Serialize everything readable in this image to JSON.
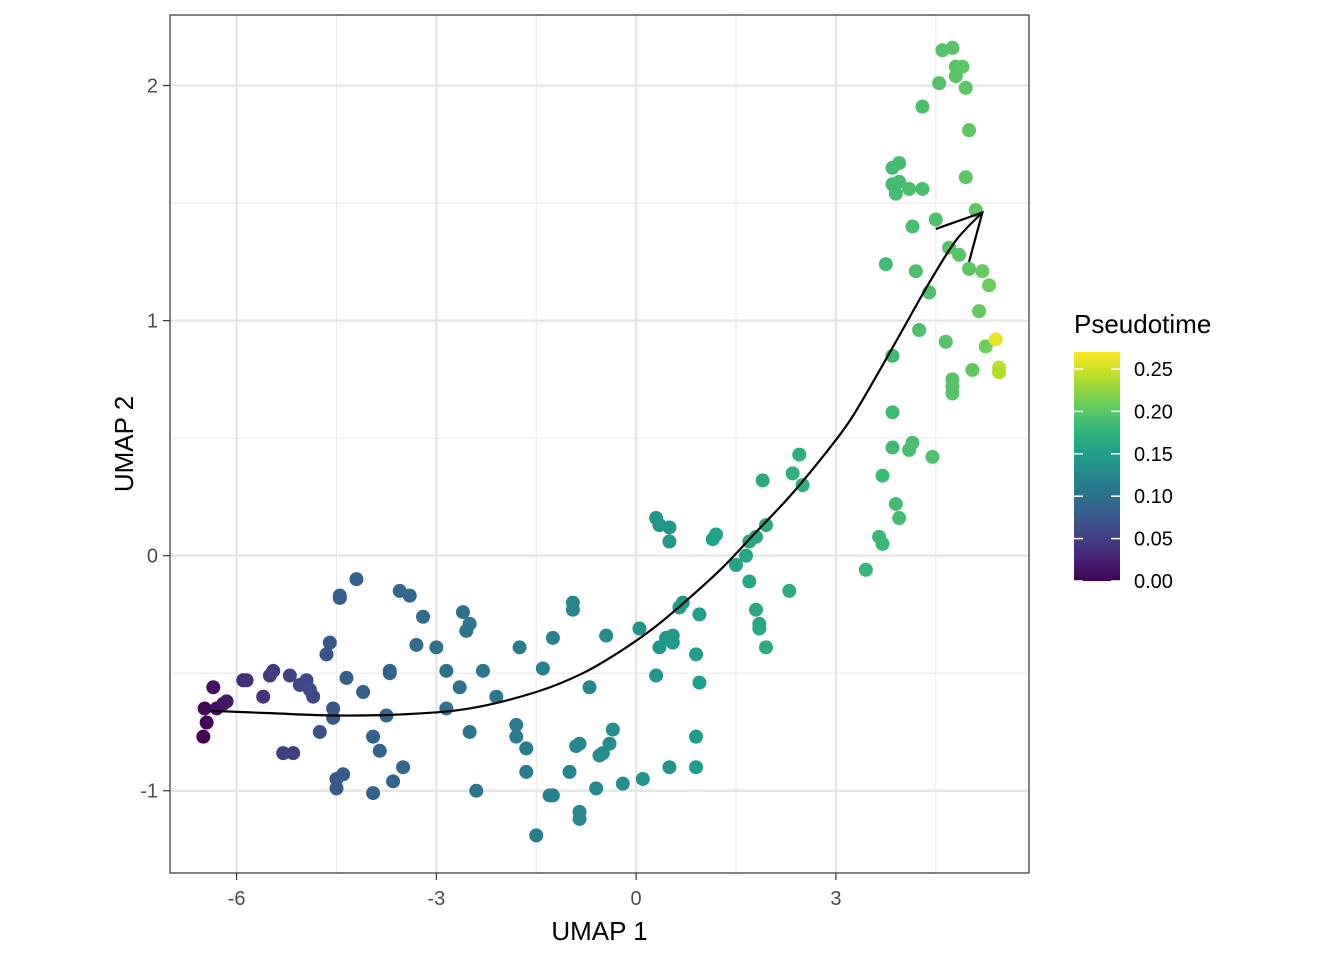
{
  "chart_data": {
    "type": "scatter",
    "title": "",
    "xlabel": "UMAP 1",
    "ylabel": "UMAP 2",
    "xlim": [
      -7.0,
      5.9
    ],
    "ylim": [
      -1.35,
      2.3
    ],
    "x_ticks": [
      -6,
      -3,
      0,
      3
    ],
    "x_tick_labels": [
      "-6",
      "-3",
      "0",
      "3"
    ],
    "y_ticks": [
      -1,
      0,
      1,
      2
    ],
    "y_tick_labels": [
      "-1",
      "0",
      "1",
      "2"
    ],
    "grid": true,
    "legend": {
      "title": "Pseudotime",
      "placement": "right",
      "type": "continuous",
      "range": [
        0.0,
        0.27
      ],
      "ticks": [
        0.0,
        0.05,
        0.1,
        0.15,
        0.2,
        0.25
      ],
      "tick_labels": [
        "0.00",
        "0.05",
        "0.10",
        "0.15",
        "0.20",
        "0.25"
      ]
    },
    "colormap": "viridis",
    "colormap_stops": [
      "#440154",
      "#482878",
      "#3E4A89",
      "#31688E",
      "#26828E",
      "#1F9E89",
      "#35B779",
      "#6DCD59",
      "#B4DE2C",
      "#FDE725"
    ],
    "trajectory": [
      [
        -6.4,
        -0.66
      ],
      [
        -5.5,
        -0.67
      ],
      [
        -4.5,
        -0.68
      ],
      [
        -3.5,
        -0.675
      ],
      [
        -2.5,
        -0.65
      ],
      [
        -1.5,
        -0.58
      ],
      [
        -0.8,
        -0.5
      ],
      [
        -0.2,
        -0.4
      ],
      [
        0.3,
        -0.3
      ],
      [
        0.8,
        -0.18
      ],
      [
        1.3,
        -0.05
      ],
      [
        1.8,
        0.1
      ],
      [
        2.3,
        0.25
      ],
      [
        2.8,
        0.42
      ],
      [
        3.2,
        0.57
      ],
      [
        3.6,
        0.76
      ],
      [
        4.0,
        0.96
      ],
      [
        4.4,
        1.16
      ],
      [
        4.8,
        1.34
      ],
      [
        5.2,
        1.46
      ]
    ],
    "arrow_head": {
      "tip": [
        5.2,
        1.46
      ],
      "left": [
        4.5,
        1.39
      ],
      "right": [
        5.0,
        1.25
      ]
    },
    "points": [
      [
        -6.5,
        -0.77,
        0.0
      ],
      [
        -6.45,
        -0.71,
        0.003
      ],
      [
        -6.48,
        -0.65,
        0.005
      ],
      [
        -6.35,
        -0.56,
        0.01
      ],
      [
        -6.3,
        -0.65,
        0.012
      ],
      [
        -6.2,
        -0.63,
        0.015
      ],
      [
        -6.15,
        -0.62,
        0.018
      ],
      [
        -5.9,
        -0.53,
        0.035
      ],
      [
        -5.85,
        -0.53,
        0.037
      ],
      [
        -5.6,
        -0.6,
        0.04
      ],
      [
        -5.5,
        -0.51,
        0.045
      ],
      [
        -5.45,
        -0.49,
        0.048
      ],
      [
        -5.3,
        -0.84,
        0.05
      ],
      [
        -5.15,
        -0.84,
        0.052
      ],
      [
        -5.2,
        -0.51,
        0.055
      ],
      [
        -5.05,
        -0.55,
        0.057
      ],
      [
        -4.95,
        -0.53,
        0.058
      ],
      [
        -4.9,
        -0.57,
        0.06
      ],
      [
        -4.85,
        -0.6,
        0.06
      ],
      [
        -4.65,
        -0.42,
        0.07
      ],
      [
        -4.6,
        -0.37,
        0.072
      ],
      [
        -4.75,
        -0.75,
        0.068
      ],
      [
        -4.55,
        -0.65,
        0.072
      ],
      [
        -4.55,
        -0.69,
        0.073
      ],
      [
        -4.5,
        -0.99,
        0.075
      ],
      [
        -4.5,
        -0.95,
        0.075
      ],
      [
        -4.4,
        -0.93,
        0.077
      ],
      [
        -4.45,
        -0.18,
        0.08
      ],
      [
        -4.45,
        -0.17,
        0.08
      ],
      [
        -4.35,
        -0.52,
        0.08
      ],
      [
        -4.2,
        -0.1,
        0.082
      ],
      [
        -4.1,
        -0.58,
        0.083
      ],
      [
        -3.95,
        -0.77,
        0.085
      ],
      [
        -3.95,
        -1.01,
        0.085
      ],
      [
        -3.85,
        -0.83,
        0.086
      ],
      [
        -3.75,
        -0.68,
        0.087
      ],
      [
        -3.7,
        -0.49,
        0.088
      ],
      [
        -3.7,
        -0.5,
        0.088
      ],
      [
        -3.65,
        -0.96,
        0.088
      ],
      [
        -3.55,
        -0.15,
        0.09
      ],
      [
        -3.5,
        -0.9,
        0.09
      ],
      [
        -3.4,
        -0.17,
        0.092
      ],
      [
        -3.3,
        -0.38,
        0.095
      ],
      [
        -3.2,
        -0.26,
        0.095
      ],
      [
        -3.0,
        -0.39,
        0.098
      ],
      [
        -2.85,
        -0.65,
        0.1
      ],
      [
        -2.85,
        -0.49,
        0.1
      ],
      [
        -2.65,
        -0.56,
        0.102
      ],
      [
        -2.6,
        -0.24,
        0.102
      ],
      [
        -2.55,
        -0.32,
        0.104
      ],
      [
        -2.5,
        -0.29,
        0.105
      ],
      [
        -2.5,
        -0.75,
        0.105
      ],
      [
        -2.4,
        -1.0,
        0.106
      ],
      [
        -2.3,
        -0.49,
        0.107
      ],
      [
        -2.1,
        -0.6,
        0.11
      ],
      [
        -1.75,
        -0.39,
        0.115
      ],
      [
        -1.8,
        -0.72,
        0.113
      ],
      [
        -1.8,
        -0.77,
        0.113
      ],
      [
        -1.65,
        -0.82,
        0.115
      ],
      [
        -1.65,
        -0.92,
        0.115
      ],
      [
        -1.5,
        -1.19,
        0.117
      ],
      [
        -1.4,
        -0.48,
        0.118
      ],
      [
        -1.3,
        -1.02,
        0.12
      ],
      [
        -1.25,
        -1.02,
        0.12
      ],
      [
        -1.25,
        -0.35,
        0.12
      ],
      [
        -1.0,
        -0.92,
        0.123
      ],
      [
        -0.95,
        -0.23,
        0.125
      ],
      [
        -0.95,
        -0.2,
        0.125
      ],
      [
        -0.9,
        -0.81,
        0.125
      ],
      [
        -0.85,
        -0.8,
        0.126
      ],
      [
        -0.85,
        -1.09,
        0.126
      ],
      [
        -0.85,
        -1.12,
        0.126
      ],
      [
        -0.7,
        -0.56,
        0.128
      ],
      [
        -0.6,
        -0.99,
        0.13
      ],
      [
        -0.55,
        -0.85,
        0.13
      ],
      [
        -0.5,
        -0.84,
        0.131
      ],
      [
        -0.45,
        -0.34,
        0.132
      ],
      [
        -0.4,
        -0.8,
        0.133
      ],
      [
        -0.35,
        -0.74,
        0.133
      ],
      [
        -0.2,
        -0.97,
        0.135
      ],
      [
        0.05,
        -0.31,
        0.138
      ],
      [
        0.1,
        -0.95,
        0.138
      ],
      [
        0.3,
        -0.51,
        0.14
      ],
      [
        0.3,
        0.16,
        0.14
      ],
      [
        0.35,
        0.13,
        0.141
      ],
      [
        0.35,
        -0.39,
        0.141
      ],
      [
        0.45,
        -0.35,
        0.143
      ],
      [
        0.5,
        0.12,
        0.143
      ],
      [
        0.5,
        -0.9,
        0.143
      ],
      [
        0.5,
        0.06,
        0.144
      ],
      [
        0.55,
        -0.34,
        0.145
      ],
      [
        0.55,
        -0.37,
        0.145
      ],
      [
        0.65,
        -0.22,
        0.147
      ],
      [
        0.7,
        -0.2,
        0.147
      ],
      [
        0.9,
        -0.42,
        0.15
      ],
      [
        0.9,
        -0.77,
        0.15
      ],
      [
        0.9,
        -0.9,
        0.15
      ],
      [
        0.95,
        -0.54,
        0.15
      ],
      [
        0.95,
        -0.25,
        0.15
      ],
      [
        1.15,
        0.07,
        0.153
      ],
      [
        1.2,
        0.09,
        0.153
      ],
      [
        1.5,
        -0.04,
        0.158
      ],
      [
        1.65,
        0.0,
        0.16
      ],
      [
        1.7,
        -0.11,
        0.16
      ],
      [
        1.7,
        0.06,
        0.161
      ],
      [
        1.8,
        0.08,
        0.162
      ],
      [
        1.8,
        -0.23,
        0.162
      ],
      [
        1.85,
        -0.29,
        0.163
      ],
      [
        1.85,
        -0.31,
        0.163
      ],
      [
        1.9,
        0.32,
        0.165
      ],
      [
        1.95,
        0.13,
        0.165
      ],
      [
        1.95,
        -0.39,
        0.165
      ],
      [
        2.3,
        -0.15,
        0.168
      ],
      [
        2.35,
        0.35,
        0.17
      ],
      [
        2.45,
        0.43,
        0.17
      ],
      [
        2.5,
        0.3,
        0.172
      ],
      [
        3.45,
        -0.06,
        0.18
      ],
      [
        3.65,
        0.08,
        0.182
      ],
      [
        3.7,
        0.05,
        0.182
      ],
      [
        3.7,
        0.34,
        0.183
      ],
      [
        3.75,
        1.24,
        0.185
      ],
      [
        3.85,
        0.85,
        0.186
      ],
      [
        3.85,
        0.61,
        0.186
      ],
      [
        3.85,
        0.46,
        0.186
      ],
      [
        3.85,
        1.65,
        0.186
      ],
      [
        3.85,
        1.58,
        0.187
      ],
      [
        3.9,
        1.54,
        0.187
      ],
      [
        3.9,
        0.22,
        0.187
      ],
      [
        3.95,
        0.16,
        0.188
      ],
      [
        3.95,
        1.67,
        0.188
      ],
      [
        3.95,
        1.59,
        0.188
      ],
      [
        4.1,
        1.56,
        0.19
      ],
      [
        4.1,
        0.45,
        0.19
      ],
      [
        4.15,
        1.4,
        0.19
      ],
      [
        4.15,
        0.48,
        0.19
      ],
      [
        4.2,
        1.21,
        0.191
      ],
      [
        4.25,
        0.96,
        0.192
      ],
      [
        4.3,
        1.56,
        0.192
      ],
      [
        4.3,
        1.91,
        0.192
      ],
      [
        4.4,
        1.12,
        0.193
      ],
      [
        4.45,
        0.42,
        0.193
      ],
      [
        4.5,
        1.43,
        0.194
      ],
      [
        4.55,
        2.01,
        0.195
      ],
      [
        4.6,
        2.15,
        0.196
      ],
      [
        4.65,
        0.91,
        0.196
      ],
      [
        4.7,
        1.31,
        0.197
      ],
      [
        4.75,
        0.75,
        0.197
      ],
      [
        4.75,
        0.69,
        0.197
      ],
      [
        4.75,
        0.72,
        0.197
      ],
      [
        4.75,
        2.16,
        0.198
      ],
      [
        4.8,
        2.08,
        0.198
      ],
      [
        4.8,
        2.04,
        0.198
      ],
      [
        4.85,
        1.28,
        0.199
      ],
      [
        4.9,
        2.08,
        0.2
      ],
      [
        4.95,
        1.99,
        0.2
      ],
      [
        4.95,
        1.61,
        0.2
      ],
      [
        5.0,
        1.81,
        0.201
      ],
      [
        5.0,
        1.22,
        0.201
      ],
      [
        5.05,
        0.79,
        0.202
      ],
      [
        5.1,
        1.47,
        0.203
      ],
      [
        5.15,
        1.04,
        0.204
      ],
      [
        5.2,
        1.21,
        0.205
      ],
      [
        5.25,
        0.89,
        0.21
      ],
      [
        5.3,
        1.15,
        0.208
      ],
      [
        5.4,
        0.92,
        0.26
      ],
      [
        5.45,
        0.8,
        0.245
      ],
      [
        5.45,
        0.78,
        0.24
      ]
    ]
  }
}
